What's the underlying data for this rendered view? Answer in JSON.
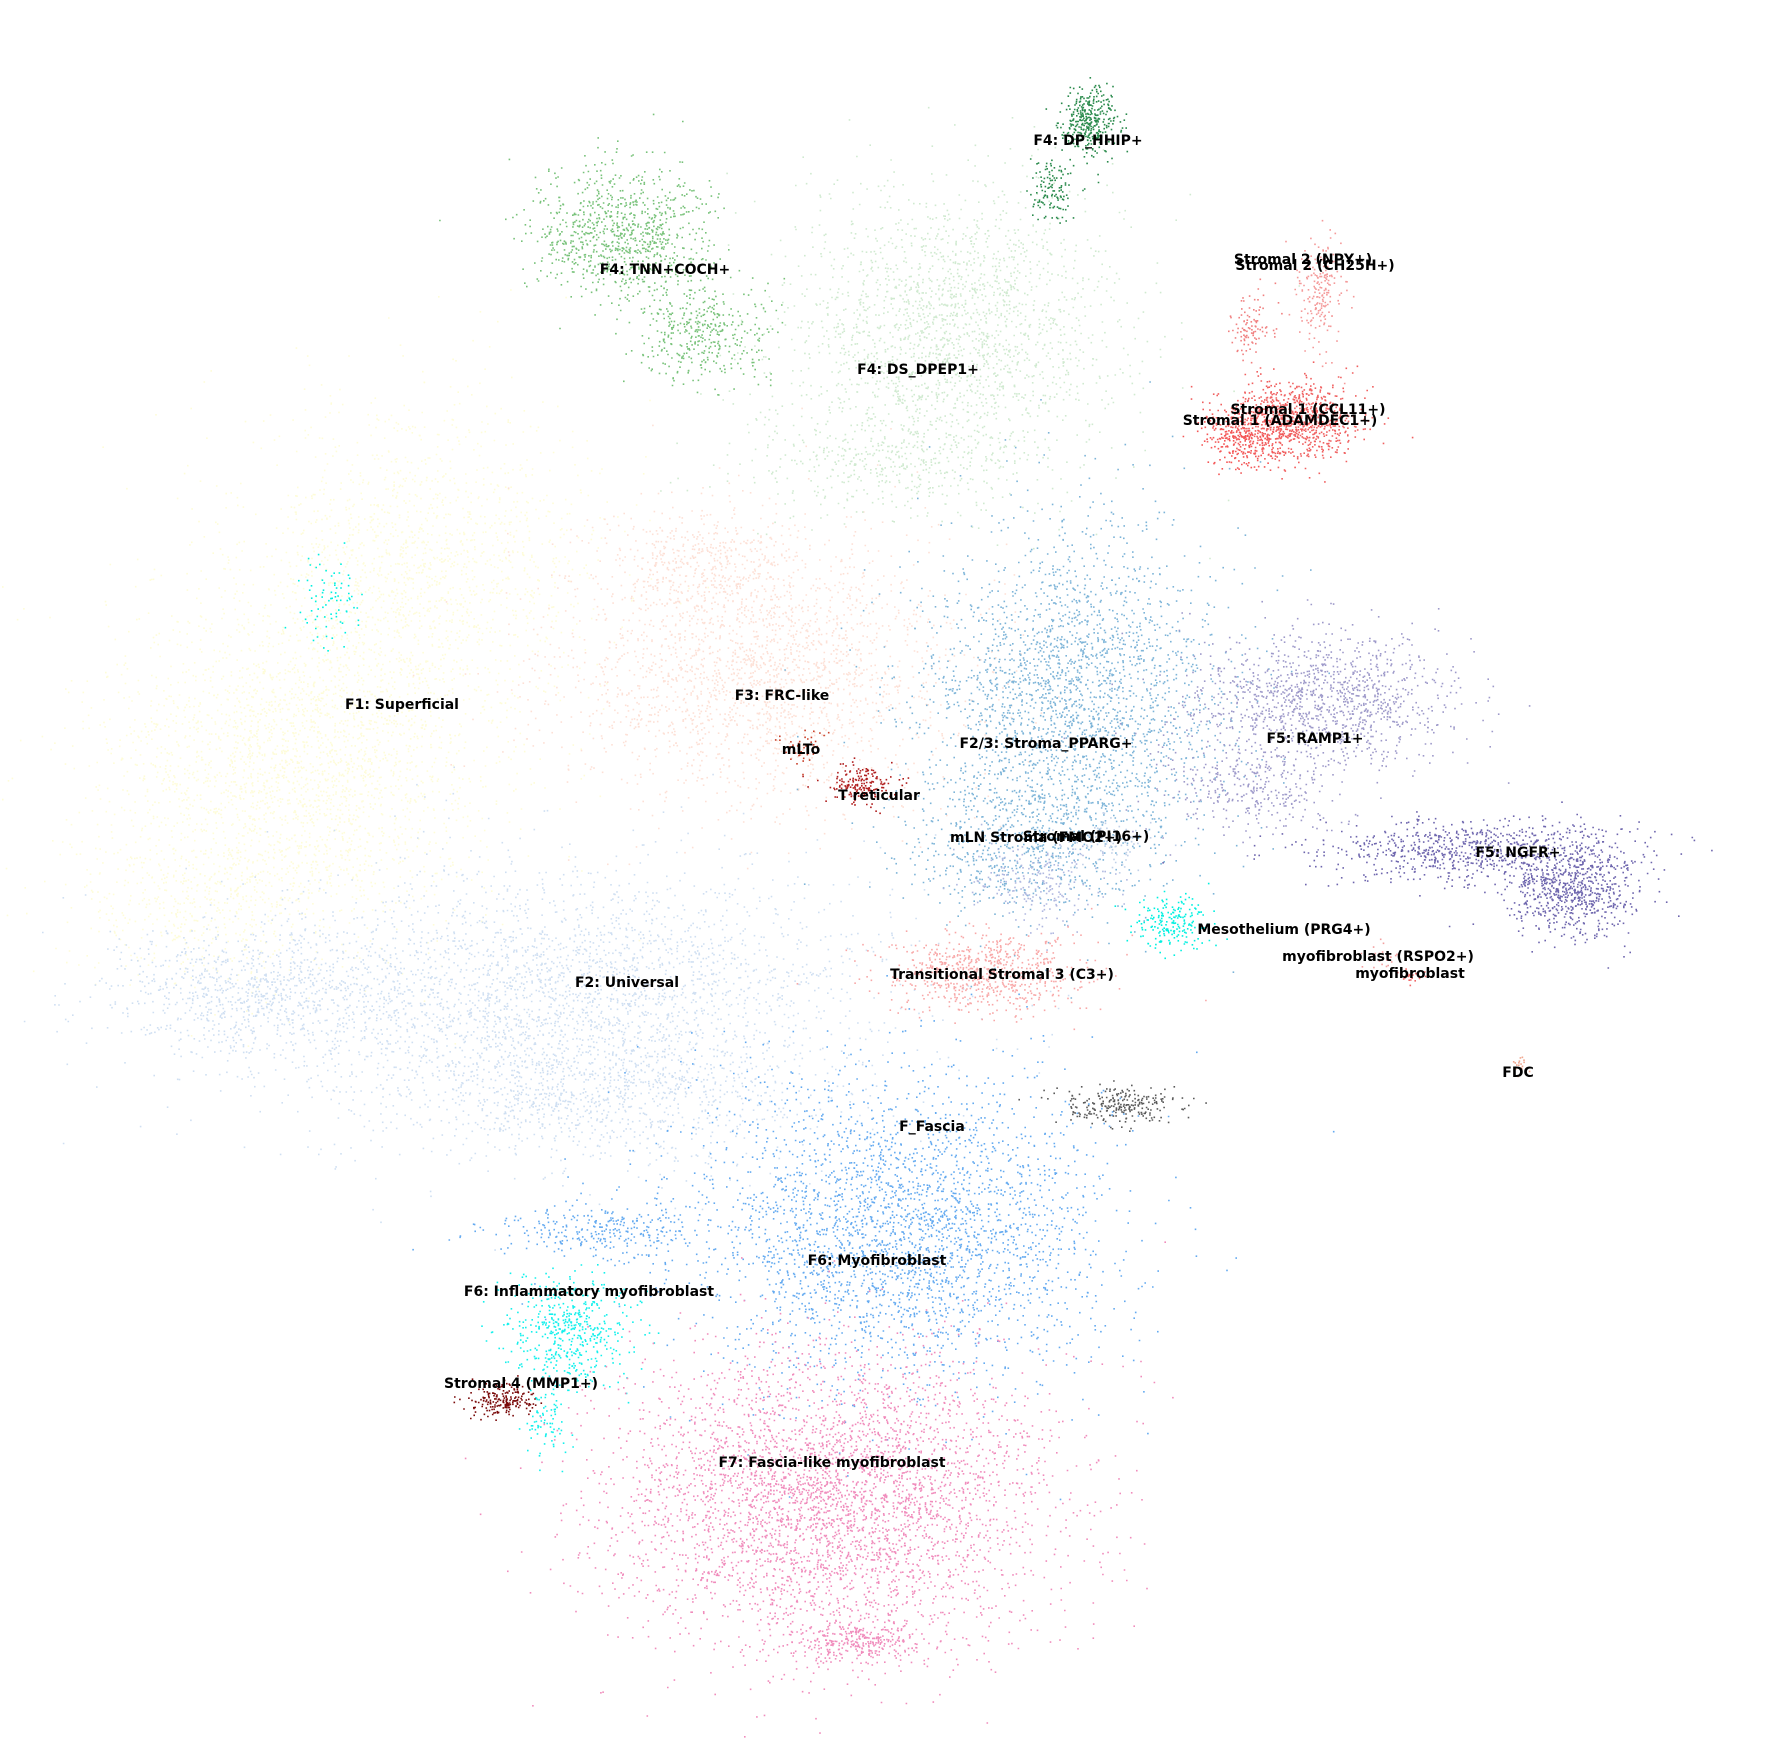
{
  "chart_data": {
    "type": "scatter",
    "title": "",
    "xlabel": "",
    "ylabel": "",
    "axes_visible": false,
    "grid": false,
    "legend": "none (cluster labels placed on plot)",
    "clusters": [
      {
        "name": "F1: Superficial",
        "color": "#fefcd8",
        "label_xy": [
          402,
          705
        ],
        "blobs": [
          [
            300,
            760,
            170,
            150,
            2600
          ],
          [
            420,
            560,
            160,
            140,
            1600
          ],
          [
            200,
            900,
            120,
            80,
            500
          ]
        ]
      },
      {
        "name": "F2: Universal",
        "color": "#cfdff2",
        "label_xy": [
          627,
          983
        ],
        "blobs": [
          [
            560,
            1000,
            280,
            120,
            3200
          ],
          [
            250,
            990,
            130,
            55,
            800
          ],
          [
            600,
            1100,
            170,
            60,
            700
          ]
        ]
      },
      {
        "name": "F3: FRC-like",
        "color": "#fde0d6",
        "label_xy": [
          782,
          696
        ],
        "blobs": [
          [
            760,
            670,
            180,
            120,
            2200
          ],
          [
            700,
            560,
            90,
            50,
            400
          ]
        ]
      },
      {
        "name": "F2/3: Stroma_PPARG+",
        "color": "#7db4d8",
        "label_xy": [
          1046,
          744
        ],
        "blobs": [
          [
            1070,
            700,
            140,
            160,
            2600
          ],
          [
            1020,
            850,
            110,
            60,
            500
          ]
        ]
      },
      {
        "name": "F4: DS_DPEP1+",
        "color": "#d0ead0",
        "label_xy": [
          918,
          370
        ],
        "blobs": [
          [
            950,
            330,
            150,
            130,
            2000
          ],
          [
            880,
            460,
            130,
            50,
            400
          ]
        ]
      },
      {
        "name": "F4: TNN+COCH+",
        "color": "#78c27a",
        "label_xy": [
          665,
          270
        ],
        "blobs": [
          [
            620,
            230,
            80,
            60,
            900
          ],
          [
            700,
            330,
            60,
            50,
            400
          ]
        ]
      },
      {
        "name": "F4: DP_HHIP+",
        "color": "#2a8a4c",
        "label_xy": [
          1088,
          141
        ],
        "blobs": [
          [
            1090,
            120,
            25,
            30,
            350
          ],
          [
            1050,
            190,
            20,
            30,
            120
          ]
        ]
      },
      {
        "name": "Stromal 1 (CCL11+)",
        "color": "#f06060",
        "label_xy": [
          1308,
          410
        ],
        "blobs": [
          [
            1290,
            420,
            60,
            35,
            900
          ]
        ]
      },
      {
        "name": "Stromal 1 (ADAMDEC1+)",
        "color": "#f45656",
        "label_xy": [
          1280,
          421
        ],
        "blobs": [
          [
            1240,
            440,
            35,
            25,
            250
          ]
        ]
      },
      {
        "name": "Stromal 2 (NPY+)",
        "color": "#f49a9a",
        "label_xy": [
          1303,
          260
        ],
        "blobs": [
          [
            1320,
            290,
            22,
            50,
            200
          ]
        ]
      },
      {
        "name": "Stromal 2 (CH25H+)",
        "color": "#f08080",
        "label_xy": [
          1315,
          266
        ],
        "blobs": [
          [
            1250,
            330,
            20,
            30,
            100
          ]
        ]
      },
      {
        "name": "F5: RAMP1+",
        "color": "#9e9aca",
        "label_xy": [
          1315,
          739
        ],
        "blobs": [
          [
            1320,
            700,
            120,
            60,
            1200
          ],
          [
            1250,
            790,
            80,
            40,
            300
          ]
        ]
      },
      {
        "name": "F5: NGFR+",
        "color": "#6e66ae",
        "label_xy": [
          1518,
          853
        ],
        "blobs": [
          [
            1570,
            890,
            60,
            40,
            700
          ],
          [
            1480,
            850,
            140,
            30,
            800
          ]
        ]
      },
      {
        "name": "mLTo",
        "color": "#c8402a",
        "label_xy": [
          801,
          750
        ],
        "blobs": [
          [
            800,
            740,
            20,
            20,
            40
          ]
        ]
      },
      {
        "name": "T reticular",
        "color": "#b01e1e",
        "label_xy": [
          879,
          796
        ],
        "blobs": [
          [
            860,
            785,
            28,
            18,
            180
          ]
        ]
      },
      {
        "name": "mLN Stroma (FMO2+)",
        "color": "#b0b8e0",
        "label_xy": [
          1036,
          838
        ],
        "blobs": [
          [
            1040,
            880,
            60,
            35,
            200
          ]
        ]
      },
      {
        "name": "Stromal (PI16+)",
        "color": "#c0d0e8",
        "label_xy": [
          1086,
          837
        ],
        "blobs": [
          [
            1100,
            840,
            40,
            25,
            100
          ]
        ]
      },
      {
        "name": "Mesothelium (PRG4+)",
        "color": "#00f0e0",
        "label_xy": [
          1284,
          930
        ],
        "blobs": [
          [
            1170,
            920,
            35,
            25,
            200
          ],
          [
            330,
            600,
            30,
            40,
            80
          ]
        ]
      },
      {
        "name": "myofibroblast (RSPO2+)",
        "color": "#f2a0a0",
        "label_xy": [
          1378,
          957
        ],
        "blobs": [
          [
            1380,
            955,
            15,
            10,
            25
          ]
        ]
      },
      {
        "name": "myofibroblast",
        "color": "#f06868",
        "label_xy": [
          1410,
          974
        ],
        "blobs": [
          [
            1410,
            975,
            14,
            8,
            25
          ]
        ]
      },
      {
        "name": "Transitional Stromal 3 (C3+)",
        "color": "#f8a8a8",
        "label_xy": [
          1002,
          975
        ],
        "blobs": [
          [
            990,
            970,
            90,
            35,
            700
          ]
        ]
      },
      {
        "name": "FDC",
        "color": "#f0a890",
        "label_xy": [
          1518,
          1073
        ],
        "blobs": [
          [
            1518,
            1065,
            6,
            10,
            20
          ]
        ]
      },
      {
        "name": "F_Fascia",
        "color": "#5a5a5a",
        "label_xy": [
          932,
          1127
        ],
        "blobs": [
          [
            1120,
            1105,
            55,
            18,
            250
          ]
        ]
      },
      {
        "name": "F6: Myofibroblast",
        "color": "#64aaf0",
        "label_xy": [
          877,
          1261
        ],
        "blobs": [
          [
            900,
            1230,
            190,
            140,
            3000
          ],
          [
            600,
            1230,
            100,
            25,
            300
          ]
        ]
      },
      {
        "name": "F6: Inflammatory myofibroblast",
        "color": "#14f0ec",
        "label_xy": [
          589,
          1292
        ],
        "blobs": [
          [
            570,
            1330,
            55,
            50,
            500
          ],
          [
            545,
            1420,
            20,
            40,
            80
          ]
        ]
      },
      {
        "name": "Stromal 4 (MMP1+)",
        "color": "#7a0a0a",
        "label_xy": [
          521,
          1384
        ],
        "blobs": [
          [
            500,
            1400,
            30,
            15,
            200
          ]
        ]
      },
      {
        "name": "F7: Fascia-like myofibroblast",
        "color": "#f08cbc",
        "label_xy": [
          832,
          1463
        ],
        "blobs": [
          [
            830,
            1500,
            200,
            130,
            4000
          ],
          [
            860,
            1640,
            60,
            20,
            300
          ]
        ]
      }
    ]
  }
}
